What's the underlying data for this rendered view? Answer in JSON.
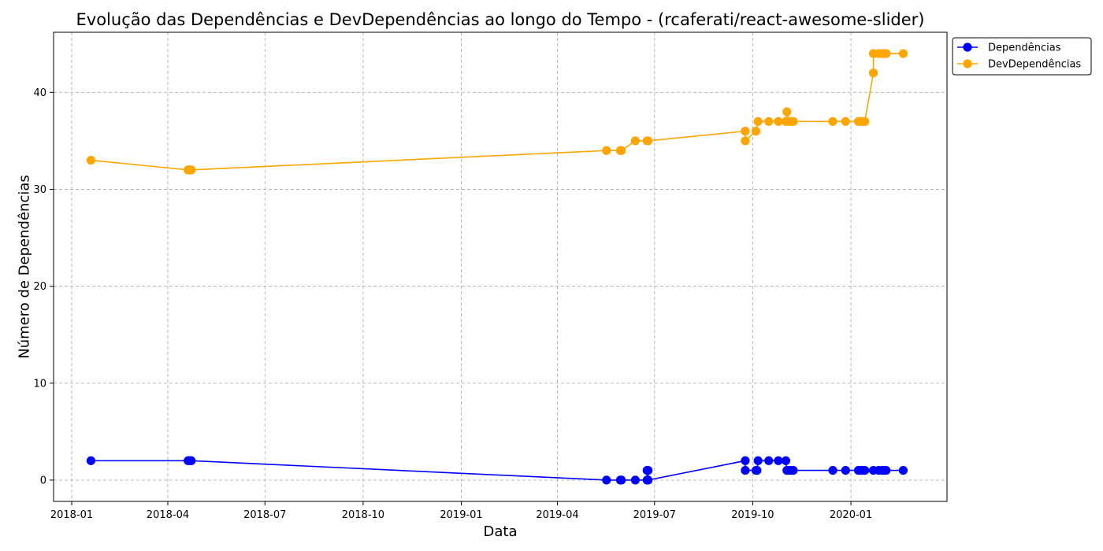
{
  "chart_data": {
    "type": "line",
    "title": "Evolução das Dependências e DevDependências ao longo do Tempo - (rcaferati/react-awesome-slider)",
    "xlabel": "Data",
    "ylabel": "Número de Dependências",
    "xlim": [
      "2017-12-15",
      "2020-03-31"
    ],
    "ylim": [
      -2.2,
      46.2
    ],
    "x_ticks": [
      "2018-01-01",
      "2018-04-01",
      "2018-07-01",
      "2018-10-01",
      "2019-01-01",
      "2019-04-01",
      "2019-07-01",
      "2019-10-01",
      "2020-01-01"
    ],
    "x_tick_labels": [
      "2018-01",
      "2018-04",
      "2018-07",
      "2018-10",
      "2019-01",
      "2019-04",
      "2019-07",
      "2019-10",
      "2020-01"
    ],
    "y_ticks": [
      0,
      10,
      20,
      30,
      40
    ],
    "y_tick_labels": [
      "0",
      "10",
      "20",
      "30",
      "40"
    ],
    "grid": true,
    "legend_position": "outside-top-right",
    "series": [
      {
        "name": "Dependências",
        "color": "#0000ff",
        "x": [
          "2018-01-19",
          "2018-04-20",
          "2018-04-21",
          "2018-04-22",
          "2018-04-23",
          "2019-05-17",
          "2019-05-30",
          "2019-05-31",
          "2019-06-13",
          "2019-06-24",
          "2019-06-24",
          "2019-06-25",
          "2019-06-25",
          "2019-09-24",
          "2019-09-24",
          "2019-10-04",
          "2019-10-05",
          "2019-10-06",
          "2019-10-16",
          "2019-10-25",
          "2019-11-01",
          "2019-11-02",
          "2019-11-04",
          "2019-11-06",
          "2019-11-08",
          "2019-12-15",
          "2019-12-27",
          "2020-01-08",
          "2020-01-10",
          "2020-01-12",
          "2020-01-14",
          "2020-01-22",
          "2020-01-27",
          "2020-01-30",
          "2020-02-01",
          "2020-02-03",
          "2020-02-19"
        ],
        "values": [
          2,
          2,
          2,
          2,
          2,
          0,
          0,
          0,
          0,
          0,
          1,
          1,
          0,
          2,
          1,
          1,
          1,
          2,
          2,
          2,
          2,
          1,
          1,
          1,
          1,
          1,
          1,
          1,
          1,
          1,
          1,
          1,
          1,
          1,
          1,
          1,
          1
        ]
      },
      {
        "name": "DevDependências",
        "color": "#ffa500",
        "x": [
          "2018-01-19",
          "2018-04-20",
          "2018-04-21",
          "2018-04-22",
          "2018-04-23",
          "2019-05-17",
          "2019-05-30",
          "2019-05-31",
          "2019-06-13",
          "2019-06-24",
          "2019-06-25",
          "2019-09-24",
          "2019-09-24",
          "2019-10-04",
          "2019-10-06",
          "2019-10-16",
          "2019-10-25",
          "2019-11-01",
          "2019-11-02",
          "2019-11-04",
          "2019-11-06",
          "2019-11-08",
          "2019-12-15",
          "2019-12-27",
          "2020-01-08",
          "2020-01-10",
          "2020-01-12",
          "2020-01-14",
          "2020-01-22",
          "2020-01-22",
          "2020-01-27",
          "2020-01-30",
          "2020-02-01",
          "2020-02-03",
          "2020-02-19"
        ],
        "values": [
          33,
          32,
          32,
          32,
          32,
          34,
          34,
          34,
          35,
          35,
          35,
          36,
          35,
          36,
          37,
          37,
          37,
          37,
          38,
          37,
          37,
          37,
          37,
          37,
          37,
          37,
          37,
          37,
          42,
          44,
          44,
          44,
          44,
          44,
          44
        ]
      }
    ]
  }
}
